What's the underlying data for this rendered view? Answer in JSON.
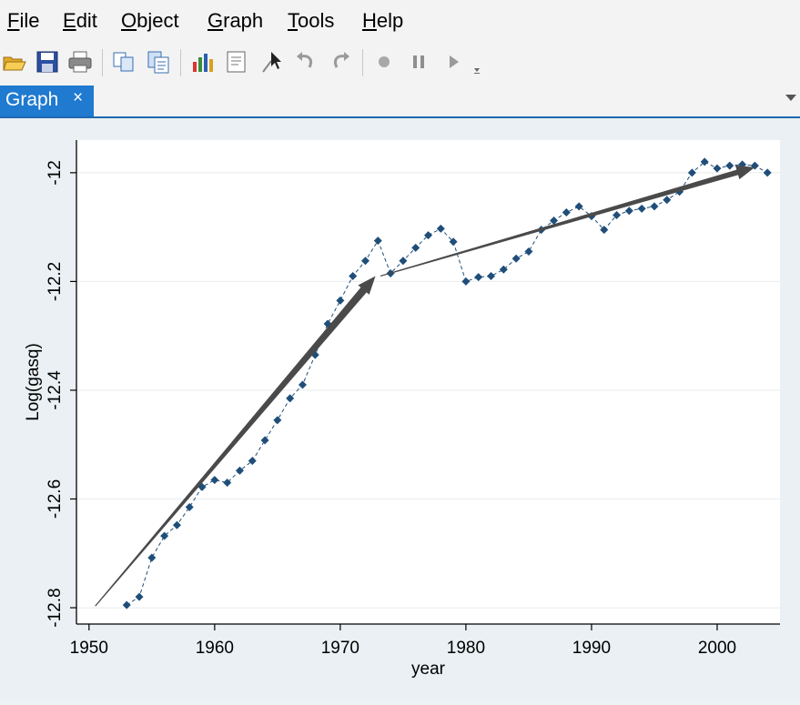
{
  "menu": {
    "items": [
      {
        "label_pre": "",
        "accel": "F",
        "label_post": "ile"
      },
      {
        "label_pre": "",
        "accel": "E",
        "label_post": "dit"
      },
      {
        "label_pre": "",
        "accel": "O",
        "label_post": "bject"
      },
      {
        "label_pre": "",
        "accel": "G",
        "label_post": "raph"
      },
      {
        "label_pre": "",
        "accel": "T",
        "label_post": "ools"
      },
      {
        "label_pre": "",
        "accel": "H",
        "label_post": "elp"
      }
    ]
  },
  "toolbar": {
    "icons": [
      "open-icon",
      "save-icon",
      "print-icon",
      "copy-icon",
      "copy-paste-icon",
      "graph-editor-icon",
      "properties-icon",
      "pointer-icon",
      "undo-icon",
      "redo-icon",
      "record-icon",
      "pause-icon",
      "play-icon"
    ]
  },
  "tabs": [
    {
      "label": "Graph",
      "close": "×"
    }
  ],
  "colors": {
    "accent": "#1f7ad0",
    "series": "#1f4e79",
    "arrow": "#4a4a4a"
  },
  "chart_data": {
    "type": "line",
    "xlabel": "year",
    "ylabel": "Log(gasq)",
    "xlim": [
      1949,
      2005
    ],
    "ylim": [
      -12.83,
      -11.94
    ],
    "xticks": [
      1950,
      1960,
      1970,
      1980,
      1990,
      2000
    ],
    "yticks": [
      -12,
      -12.2,
      -12.4,
      -12.6,
      -12.8
    ],
    "ytick_labels": [
      "-12",
      "-12.2",
      "-12.4",
      "-12.6",
      "-12.8"
    ],
    "grid": "horizontal",
    "series": [
      {
        "x": [
          1953,
          1954,
          1955,
          1956,
          1957,
          1958,
          1959,
          1960,
          1961,
          1962,
          1963,
          1964,
          1965,
          1966,
          1967,
          1968,
          1969,
          1970,
          1971,
          1972,
          1973,
          1974,
          1975,
          1976,
          1977,
          1978,
          1979,
          1980,
          1981,
          1982,
          1983,
          1984,
          1985,
          1986,
          1987,
          1988,
          1989,
          1990,
          1991,
          1992,
          1993,
          1994,
          1995,
          1996,
          1997,
          1998,
          1999,
          2000,
          2001,
          2002,
          2003,
          2004
        ],
        "values": [
          -12.795,
          -12.78,
          -12.708,
          -12.668,
          -12.648,
          -12.615,
          -12.578,
          -12.565,
          -12.57,
          -12.548,
          -12.53,
          -12.492,
          -12.455,
          -12.415,
          -12.39,
          -12.335,
          -12.278,
          -12.235,
          -12.19,
          -12.162,
          -12.125,
          -12.185,
          -12.162,
          -12.138,
          -12.115,
          -12.103,
          -12.127,
          -12.2,
          -12.192,
          -12.19,
          -12.178,
          -12.158,
          -12.145,
          -12.105,
          -12.088,
          -12.073,
          -12.062,
          -12.08,
          -12.105,
          -12.078,
          -12.07,
          -12.066,
          -12.062,
          -12.05,
          -12.035,
          -12.0,
          -11.98,
          -11.992,
          -11.987,
          -11.985,
          -11.987,
          -12.0
        ]
      }
    ],
    "arrows": [
      {
        "from": [
          1950.5,
          -12.797
        ],
        "to": [
          1972.8,
          -12.19
        ],
        "width": "thick"
      },
      {
        "from": [
          1973.2,
          -12.19
        ],
        "to": [
          2003,
          -11.99
        ],
        "width": "medium"
      }
    ]
  }
}
